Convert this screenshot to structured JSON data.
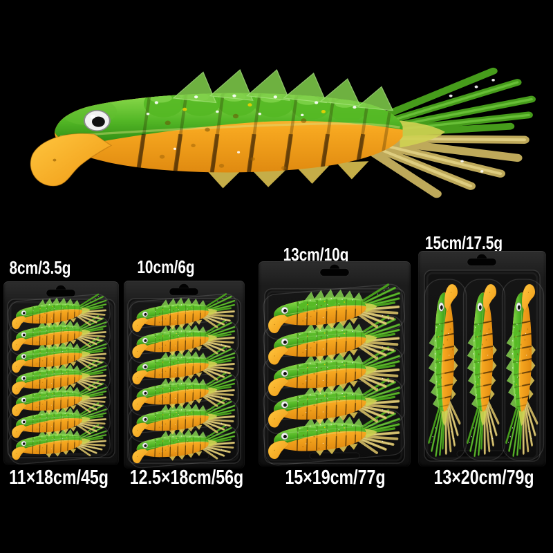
{
  "image_type": "product-photo-collage",
  "hero": {
    "subject": "jointed-soft-swimbait-lure",
    "colors": {
      "back_green": "#55b826",
      "belly_orange": "#f6a41e",
      "tail_yellow": "#e0c76a",
      "eye": "#f2f2f2"
    }
  },
  "packs": [
    {
      "size_label": "8cm/3.5g",
      "pack_label": "11×18cm/45g",
      "lure_count": 7,
      "orientation": "horizontal"
    },
    {
      "size_label": "10cm/6g",
      "pack_label": "12.5×18cm/56g",
      "lure_count": 6,
      "orientation": "horizontal"
    },
    {
      "size_label": "13cm/10g",
      "pack_label": "15×19cm/77g",
      "lure_count": 5,
      "orientation": "horizontal"
    },
    {
      "size_label": "15cm/17.5g",
      "pack_label": "13×20cm/79g",
      "lure_count": 3,
      "orientation": "vertical"
    }
  ],
  "colors": {
    "background": "#000000",
    "label_text": "#ffffff",
    "card": "#1a1a1a"
  }
}
